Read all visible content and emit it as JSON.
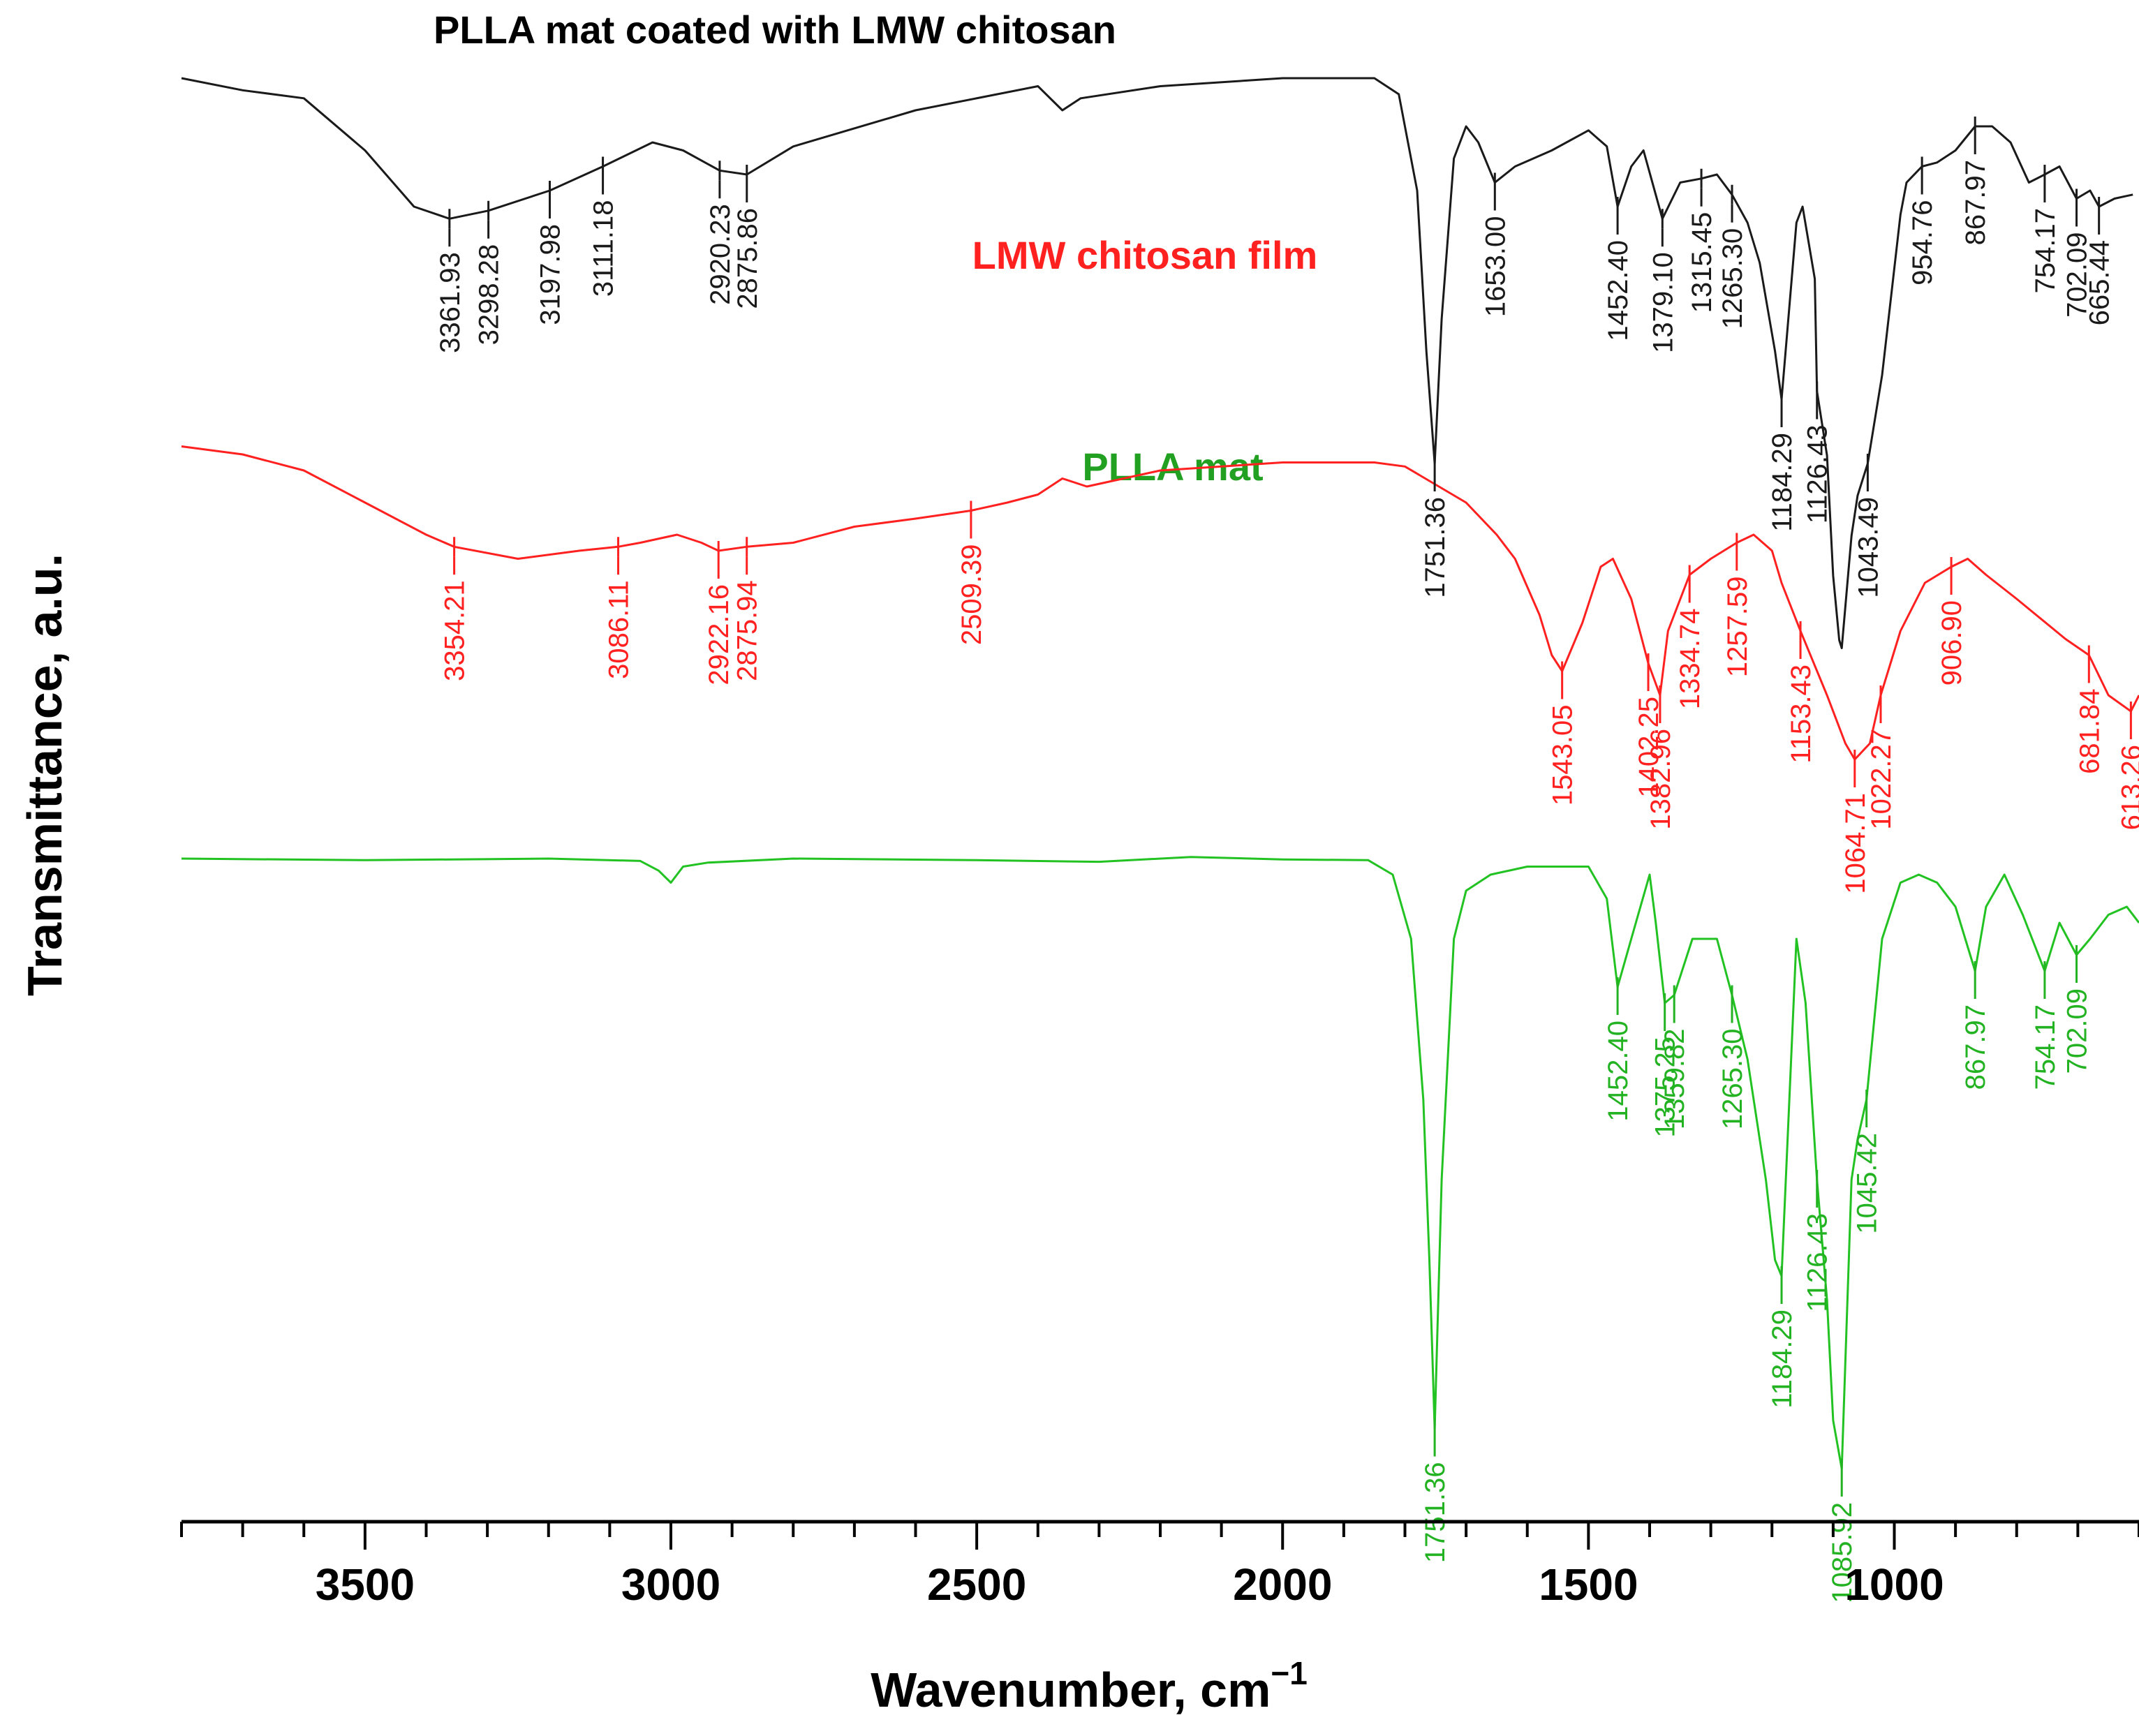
{
  "chart_data": {
    "type": "line",
    "title": "PLLA mat coated with LMW chitosan",
    "xlabel": "Wavenumber, cm",
    "xlabel_superscript": "−1",
    "ylabel": "Transmittance, a.u.",
    "xlim": [
      3800,
      600
    ],
    "x_ticks": [
      3500,
      3000,
      2500,
      2000,
      1500,
      1000
    ],
    "x_tick_labels": [
      "3500",
      "3000",
      "2500",
      "2000",
      "1500",
      "1000"
    ],
    "colors": {
      "black": "#1a1a1a",
      "red": "#ff2020",
      "green": "#22c222"
    },
    "series": [
      {
        "name": "PLLA mat coated with LMW chitosan",
        "color": "#1a1a1a",
        "label": "",
        "points": [
          [
            3800,
            0.08
          ],
          [
            3700,
            0.095
          ],
          [
            3600,
            0.105
          ],
          [
            3500,
            0.17
          ],
          [
            3420,
            0.24
          ],
          [
            3361.93,
            0.255
          ],
          [
            3298.28,
            0.245
          ],
          [
            3197.98,
            0.22
          ],
          [
            3111.18,
            0.19
          ],
          [
            3030,
            0.16
          ],
          [
            2980,
            0.17
          ],
          [
            2920.23,
            0.195
          ],
          [
            2875.86,
            0.2
          ],
          [
            2800,
            0.165
          ],
          [
            2600,
            0.12
          ],
          [
            2400,
            0.09
          ],
          [
            2360,
            0.12
          ],
          [
            2330,
            0.105
          ],
          [
            2200,
            0.09
          ],
          [
            2000,
            0.08
          ],
          [
            1850,
            0.08
          ],
          [
            1810,
            0.1
          ],
          [
            1780,
            0.22
          ],
          [
            1765,
            0.42
          ],
          [
            1751.36,
            0.56
          ],
          [
            1740,
            0.38
          ],
          [
            1720,
            0.18
          ],
          [
            1700,
            0.14
          ],
          [
            1680,
            0.16
          ],
          [
            1653.0,
            0.21
          ],
          [
            1620,
            0.19
          ],
          [
            1560,
            0.17
          ],
          [
            1500,
            0.145
          ],
          [
            1470,
            0.165
          ],
          [
            1452.4,
            0.24
          ],
          [
            1430,
            0.19
          ],
          [
            1410,
            0.17
          ],
          [
            1379.1,
            0.255
          ],
          [
            1350,
            0.21
          ],
          [
            1315.45,
            0.205
          ],
          [
            1290,
            0.2
          ],
          [
            1265.3,
            0.225
          ],
          [
            1240,
            0.26
          ],
          [
            1220,
            0.31
          ],
          [
            1195,
            0.42
          ],
          [
            1184.29,
            0.48
          ],
          [
            1160,
            0.26
          ],
          [
            1150,
            0.24
          ],
          [
            1130,
            0.33
          ],
          [
            1126.43,
            0.47
          ],
          [
            1110,
            0.55
          ],
          [
            1100,
            0.7
          ],
          [
            1090,
            0.78
          ],
          [
            1085.92,
            0.79
          ],
          [
            1070,
            0.65
          ],
          [
            1060,
            0.6
          ],
          [
            1043.49,
            0.56
          ],
          [
            1020,
            0.45
          ],
          [
            990,
            0.25
          ],
          [
            980,
            0.21
          ],
          [
            954.76,
            0.19
          ],
          [
            930,
            0.185
          ],
          [
            900,
            0.17
          ],
          [
            867.97,
            0.14
          ],
          [
            840,
            0.14
          ],
          [
            810,
            0.16
          ],
          [
            780,
            0.21
          ],
          [
            754.17,
            0.2
          ],
          [
            730,
            0.19
          ],
          [
            702.09,
            0.23
          ],
          [
            680,
            0.22
          ],
          [
            665.44,
            0.24
          ],
          [
            640,
            0.23
          ],
          [
            610,
            0.225
          ]
        ]
      },
      {
        "name": "LMW chitosan film",
        "color": "#ff2020",
        "label": "LMW chitosan film",
        "points": [
          [
            3800,
            0.33
          ],
          [
            3700,
            0.34
          ],
          [
            3600,
            0.36
          ],
          [
            3500,
            0.4
          ],
          [
            3400,
            0.44
          ],
          [
            3354.21,
            0.455
          ],
          [
            3250,
            0.47
          ],
          [
            3150,
            0.46
          ],
          [
            3086.11,
            0.455
          ],
          [
            3050,
            0.45
          ],
          [
            2990,
            0.44
          ],
          [
            2950,
            0.45
          ],
          [
            2922.16,
            0.46
          ],
          [
            2875.94,
            0.455
          ],
          [
            2800,
            0.45
          ],
          [
            2700,
            0.43
          ],
          [
            2600,
            0.42
          ],
          [
            2509.39,
            0.41
          ],
          [
            2450,
            0.4
          ],
          [
            2400,
            0.39
          ],
          [
            2360,
            0.37
          ],
          [
            2320,
            0.38
          ],
          [
            2200,
            0.36
          ],
          [
            2000,
            0.35
          ],
          [
            1850,
            0.35
          ],
          [
            1800,
            0.355
          ],
          [
            1700,
            0.4
          ],
          [
            1650,
            0.44
          ],
          [
            1620,
            0.47
          ],
          [
            1580,
            0.54
          ],
          [
            1560,
            0.59
          ],
          [
            1543.05,
            0.61
          ],
          [
            1510,
            0.55
          ],
          [
            1480,
            0.48
          ],
          [
            1460,
            0.47
          ],
          [
            1430,
            0.52
          ],
          [
            1402.25,
            0.6
          ],
          [
            1382.96,
            0.64
          ],
          [
            1370,
            0.56
          ],
          [
            1334.74,
            0.49
          ],
          [
            1300,
            0.47
          ],
          [
            1257.59,
            0.45
          ],
          [
            1230,
            0.44
          ],
          [
            1200,
            0.46
          ],
          [
            1184.29,
            0.5
          ],
          [
            1153.43,
            0.56
          ],
          [
            1110,
            0.64
          ],
          [
            1080,
            0.7
          ],
          [
            1064.71,
            0.72
          ],
          [
            1040,
            0.7
          ],
          [
            1022.27,
            0.64
          ],
          [
            990,
            0.56
          ],
          [
            950,
            0.5
          ],
          [
            906.9,
            0.48
          ],
          [
            880,
            0.47
          ],
          [
            850,
            0.49
          ],
          [
            800,
            0.52
          ],
          [
            720,
            0.57
          ],
          [
            681.84,
            0.59
          ],
          [
            650,
            0.64
          ],
          [
            613.26,
            0.66
          ],
          [
            600,
            0.64
          ]
        ]
      },
      {
        "name": "PLLA mat",
        "color": "#22c222",
        "label": "PLLA mat",
        "points": [
          [
            3800,
            0.6
          ],
          [
            3500,
            0.602
          ],
          [
            3200,
            0.6
          ],
          [
            3050,
            0.603
          ],
          [
            3020,
            0.615
          ],
          [
            3000,
            0.63
          ],
          [
            2980,
            0.61
          ],
          [
            2940,
            0.605
          ],
          [
            2800,
            0.6
          ],
          [
            2500,
            0.602
          ],
          [
            2300,
            0.604
          ],
          [
            2150,
            0.598
          ],
          [
            2000,
            0.601
          ],
          [
            1860,
            0.602
          ],
          [
            1820,
            0.62
          ],
          [
            1790,
            0.7
          ],
          [
            1770,
            0.9
          ],
          [
            1760,
            1.1
          ],
          [
            1751.36,
            1.31
          ],
          [
            1740,
            1.0
          ],
          [
            1720,
            0.7
          ],
          [
            1700,
            0.64
          ],
          [
            1660,
            0.62
          ],
          [
            1600,
            0.61
          ],
          [
            1500,
            0.61
          ],
          [
            1470,
            0.65
          ],
          [
            1452.4,
            0.76
          ],
          [
            1430,
            0.7
          ],
          [
            1400,
            0.62
          ],
          [
            1390,
            0.68
          ],
          [
            1375.25,
            0.78
          ],
          [
            1359.82,
            0.77
          ],
          [
            1330,
            0.7
          ],
          [
            1290,
            0.7
          ],
          [
            1265.3,
            0.77
          ],
          [
            1240,
            0.85
          ],
          [
            1210,
            1.0
          ],
          [
            1195,
            1.1
          ],
          [
            1184.29,
            1.12
          ],
          [
            1160,
            0.7
          ],
          [
            1145,
            0.78
          ],
          [
            1126.43,
            1.0
          ],
          [
            1110,
            1.15
          ],
          [
            1100,
            1.3
          ],
          [
            1085.92,
            1.36
          ],
          [
            1070,
            1.0
          ],
          [
            1060,
            0.95
          ],
          [
            1045.42,
            0.9
          ],
          [
            1020,
            0.7
          ],
          [
            990,
            0.63
          ],
          [
            960,
            0.62
          ],
          [
            930,
            0.63
          ],
          [
            900,
            0.66
          ],
          [
            867.97,
            0.74
          ],
          [
            850,
            0.66
          ],
          [
            820,
            0.62
          ],
          [
            790,
            0.67
          ],
          [
            754.17,
            0.74
          ],
          [
            730,
            0.68
          ],
          [
            702.09,
            0.72
          ],
          [
            680,
            0.7
          ],
          [
            650,
            0.67
          ],
          [
            620,
            0.66
          ],
          [
            600,
            0.68
          ]
        ]
      }
    ],
    "peak_labels": [
      {
        "series": 0,
        "x": 3361.93,
        "text": "3361.93"
      },
      {
        "series": 0,
        "x": 3298.28,
        "text": "3298.28"
      },
      {
        "series": 0,
        "x": 3197.98,
        "text": "3197.98"
      },
      {
        "series": 0,
        "x": 3111.18,
        "text": "3111.18"
      },
      {
        "series": 0,
        "x": 2920.23,
        "text": "2920.23"
      },
      {
        "series": 0,
        "x": 2875.86,
        "text": "2875.86"
      },
      {
        "series": 0,
        "x": 1751.36,
        "text": "1751.36"
      },
      {
        "series": 0,
        "x": 1653.0,
        "text": "1653.00"
      },
      {
        "series": 0,
        "x": 1452.4,
        "text": "1452.40"
      },
      {
        "series": 0,
        "x": 1379.1,
        "text": "1379.10"
      },
      {
        "series": 0,
        "x": 1315.45,
        "text": "1315.45"
      },
      {
        "series": 0,
        "x": 1265.3,
        "text": "1265.30"
      },
      {
        "series": 0,
        "x": 1184.29,
        "text": "1184.29"
      },
      {
        "series": 0,
        "x": 1126.43,
        "text": "1126.43"
      },
      {
        "series": 0,
        "x": 1043.49,
        "text": "1043.49"
      },
      {
        "series": 0,
        "x": 954.76,
        "text": "954.76"
      },
      {
        "series": 0,
        "x": 867.97,
        "text": "867.97"
      },
      {
        "series": 0,
        "x": 754.17,
        "text": "754.17"
      },
      {
        "series": 0,
        "x": 702.09,
        "text": "702.09"
      },
      {
        "series": 0,
        "x": 665.44,
        "text": "665.44"
      },
      {
        "series": 1,
        "x": 3354.21,
        "text": "3354.21"
      },
      {
        "series": 1,
        "x": 3086.11,
        "text": "3086.11"
      },
      {
        "series": 1,
        "x": 2922.16,
        "text": "2922.16"
      },
      {
        "series": 1,
        "x": 2875.94,
        "text": "2875.94"
      },
      {
        "series": 1,
        "x": 2509.39,
        "text": "2509.39"
      },
      {
        "series": 1,
        "x": 1543.05,
        "text": "1543.05"
      },
      {
        "series": 1,
        "x": 1402.25,
        "text": "1402.25"
      },
      {
        "series": 1,
        "x": 1382.96,
        "text": "1382.96"
      },
      {
        "series": 1,
        "x": 1334.74,
        "text": "1334.74"
      },
      {
        "series": 1,
        "x": 1257.59,
        "text": "1257.59"
      },
      {
        "series": 1,
        "x": 1153.43,
        "text": "1153.43"
      },
      {
        "series": 1,
        "x": 1064.71,
        "text": "1064.71"
      },
      {
        "series": 1,
        "x": 1022.27,
        "text": "1022.27"
      },
      {
        "series": 1,
        "x": 906.9,
        "text": "906.90"
      },
      {
        "series": 1,
        "x": 681.84,
        "text": "681.84"
      },
      {
        "series": 1,
        "x": 613.26,
        "text": "613.26"
      },
      {
        "series": 2,
        "x": 1751.36,
        "text": "1751.36"
      },
      {
        "series": 2,
        "x": 1452.4,
        "text": "1452.40"
      },
      {
        "series": 2,
        "x": 1375.25,
        "text": "1375.25"
      },
      {
        "series": 2,
        "x": 1359.82,
        "text": "1359.82"
      },
      {
        "series": 2,
        "x": 1265.3,
        "text": "1265.30"
      },
      {
        "series": 2,
        "x": 1184.29,
        "text": "1184.29"
      },
      {
        "series": 2,
        "x": 1126.43,
        "text": "1126.43"
      },
      {
        "series": 2,
        "x": 1085.92,
        "text": "1085.92"
      },
      {
        "series": 2,
        "x": 1045.42,
        "text": "1045.42"
      },
      {
        "series": 2,
        "x": 867.97,
        "text": "867.97"
      },
      {
        "series": 2,
        "x": 754.17,
        "text": "754.17"
      },
      {
        "series": 2,
        "x": 702.09,
        "text": "702.09"
      }
    ]
  }
}
